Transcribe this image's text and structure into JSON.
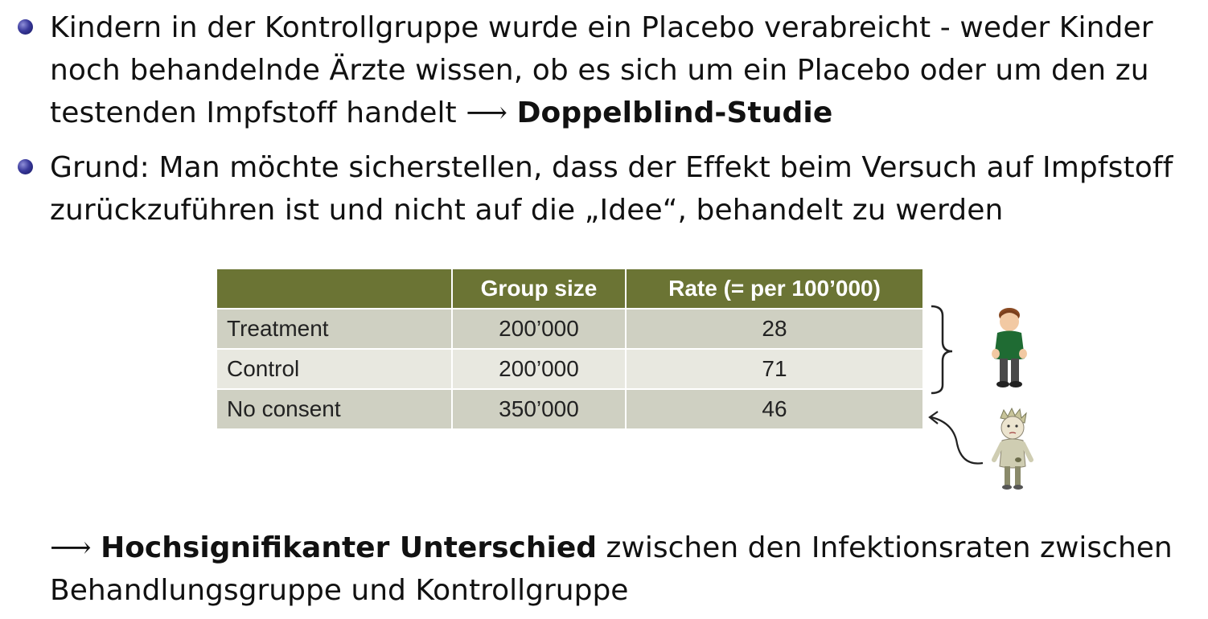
{
  "bullets": [
    {
      "text_before": "Kindern in der Kontrollgruppe wurde ein Placebo verabreicht - weder Kinder noch behandelnde Ärzte wissen, ob es sich um ein Placebo oder um den zu testenden Impfstoff handelt ",
      "arrow": "⟶",
      "bold_text": "Doppelblind-Studie"
    },
    {
      "text": "Grund: Man möchte sicherstellen, dass der Effekt beim Versuch auf Impfstoff zurückzuführen ist und nicht auf die „Idee“, behandelt zu werden"
    }
  ],
  "table": {
    "headers": [
      "",
      "Group size",
      "Rate (= per 100’000)"
    ],
    "rows": [
      [
        "Treatment",
        "200’000",
        "28"
      ],
      [
        "Control",
        "200’000",
        "71"
      ],
      [
        "No consent",
        "350’000",
        "46"
      ]
    ]
  },
  "conclusion": {
    "arrow": "⟶",
    "bold_text": "Hochsignifikanter Unterschied",
    "text_after": " zwischen den Infektionsraten zwischen Behandlungsgruppe und Kontrollgruppe"
  },
  "colors": {
    "header_bg": "#6b7434",
    "row_dark": "#cfd0c2",
    "row_light": "#e8e8e0",
    "bullet": "#2a2a8a"
  },
  "icons": [
    "healthy-boy-icon",
    "sick-boy-icon",
    "curly-brace-icon",
    "curved-arrow-icon"
  ]
}
